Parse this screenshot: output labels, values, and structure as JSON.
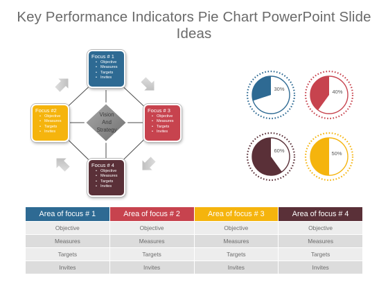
{
  "title": "Key Performance Indicators Pie Chart PowerPoint Slide Ideas",
  "center_label": [
    "Vision",
    "And",
    "Strategy"
  ],
  "colors": {
    "blue": "#2e6a93",
    "red": "#c7434e",
    "yellow": "#f5b40d",
    "maroon": "#5a3038",
    "gray": "#8c8c8c"
  },
  "focus_boxes": [
    {
      "title": "Focus # 1",
      "items": [
        "Objective",
        "Measures",
        "Targets",
        "Invites"
      ],
      "color": "#2e6a93"
    },
    {
      "title": "Focus #2",
      "items": [
        "Objective",
        "Measures",
        "Targets",
        "Invites"
      ],
      "color": "#f5b40d"
    },
    {
      "title": "Focus # 3",
      "items": [
        "Objective",
        "Measures",
        "Targets",
        "Invites"
      ],
      "color": "#c7434e"
    },
    {
      "title": "Focus # 4",
      "items": [
        "Objective",
        "Measures",
        "Targets",
        "Invites"
      ],
      "color": "#5a3038"
    }
  ],
  "pies": [
    {
      "label": "30%",
      "percent": 30,
      "color": "#2e6a93"
    },
    {
      "label": "40%",
      "percent": 40,
      "color": "#c7434e"
    },
    {
      "label": "60%",
      "percent": 60,
      "color": "#5a3038"
    },
    {
      "label": "50%",
      "percent": 50,
      "color": "#f5b40d"
    }
  ],
  "table": {
    "headers": [
      "Area of focus # 1",
      "Area of focus # 2",
      "Area of focus # 3",
      "Area of focus # 4"
    ],
    "header_colors": [
      "#2e6a93",
      "#c7434e",
      "#f5b40d",
      "#5a3038"
    ],
    "rows": [
      [
        "Objective",
        "Objective",
        "Objective",
        "Objective"
      ],
      [
        "Measures",
        "Measures",
        "Measures",
        "Measures"
      ],
      [
        "Targets",
        "Targets",
        "Targets",
        "Targets"
      ],
      [
        "Invites",
        "Invites",
        "Invites",
        "Invites"
      ]
    ]
  }
}
